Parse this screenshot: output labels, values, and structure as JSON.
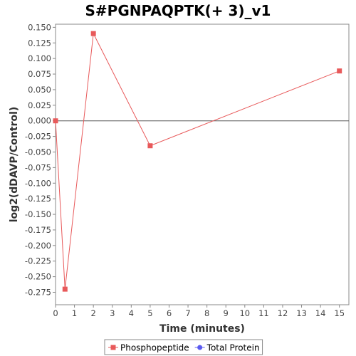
{
  "chart_data": {
    "type": "line",
    "title": "S#PGNPAQPTK(+ 3)_v1",
    "xlabel": "Time (minutes)",
    "ylabel": "log2(dDAVP/Control)",
    "xlim": [
      0,
      15.5
    ],
    "ylim": [
      -0.295,
      0.155
    ],
    "x_ticks": [
      0,
      1,
      2,
      3,
      4,
      5,
      6,
      7,
      8,
      9,
      10,
      11,
      12,
      13,
      14,
      15
    ],
    "y_ticks": [
      0.15,
      0.125,
      0.1,
      0.075,
      0.05,
      0.025,
      0.0,
      -0.025,
      -0.05,
      -0.075,
      -0.1,
      -0.125,
      -0.15,
      -0.175,
      -0.2,
      -0.225,
      -0.25,
      -0.275
    ],
    "y_tick_labels": [
      "0.150",
      "0.125",
      "0.100",
      "0.075",
      "0.050",
      "0.025",
      "0.000",
      "-0.025",
      "-0.050",
      "-0.075",
      "-0.100",
      "-0.125",
      "-0.150",
      "-0.175",
      "-0.200",
      "-0.225",
      "-0.250",
      "-0.275"
    ],
    "zero_line": true,
    "grid": false,
    "legend_position": "bottom-center",
    "series": [
      {
        "name": "Phosphopeptide",
        "color": "#e8595a",
        "marker": "square",
        "points": [
          {
            "x": 0,
            "y": 0.0
          },
          {
            "x": 0.5,
            "y": -0.27
          },
          {
            "x": 2,
            "y": 0.14
          },
          {
            "x": 5,
            "y": -0.04
          },
          {
            "x": 15,
            "y": 0.08
          }
        ]
      },
      {
        "name": "Total Protein",
        "color": "#5b5bf0",
        "marker": "circle",
        "points": []
      }
    ]
  }
}
